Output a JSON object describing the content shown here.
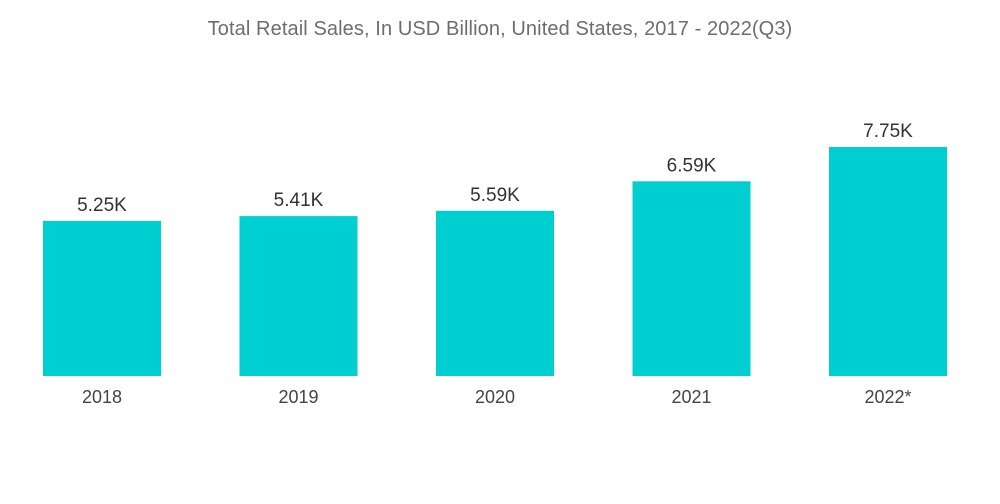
{
  "chart_data": {
    "type": "bar",
    "title": "Total Retail Sales, In USD Billion, United States, 2017 - 2022(Q3)",
    "categories": [
      "2018",
      "2019",
      "2020",
      "2021",
      "2022*"
    ],
    "values": [
      5.25,
      5.41,
      5.59,
      6.59,
      7.75
    ],
    "value_labels": [
      "5.25K",
      "5.41K",
      "5.59K",
      "6.59K",
      "7.75K"
    ],
    "xlabel": "",
    "ylabel": "",
    "ylim": [
      0,
      7.75
    ],
    "grid": false,
    "legend": "none",
    "bar_color": "#00cfd1"
  }
}
